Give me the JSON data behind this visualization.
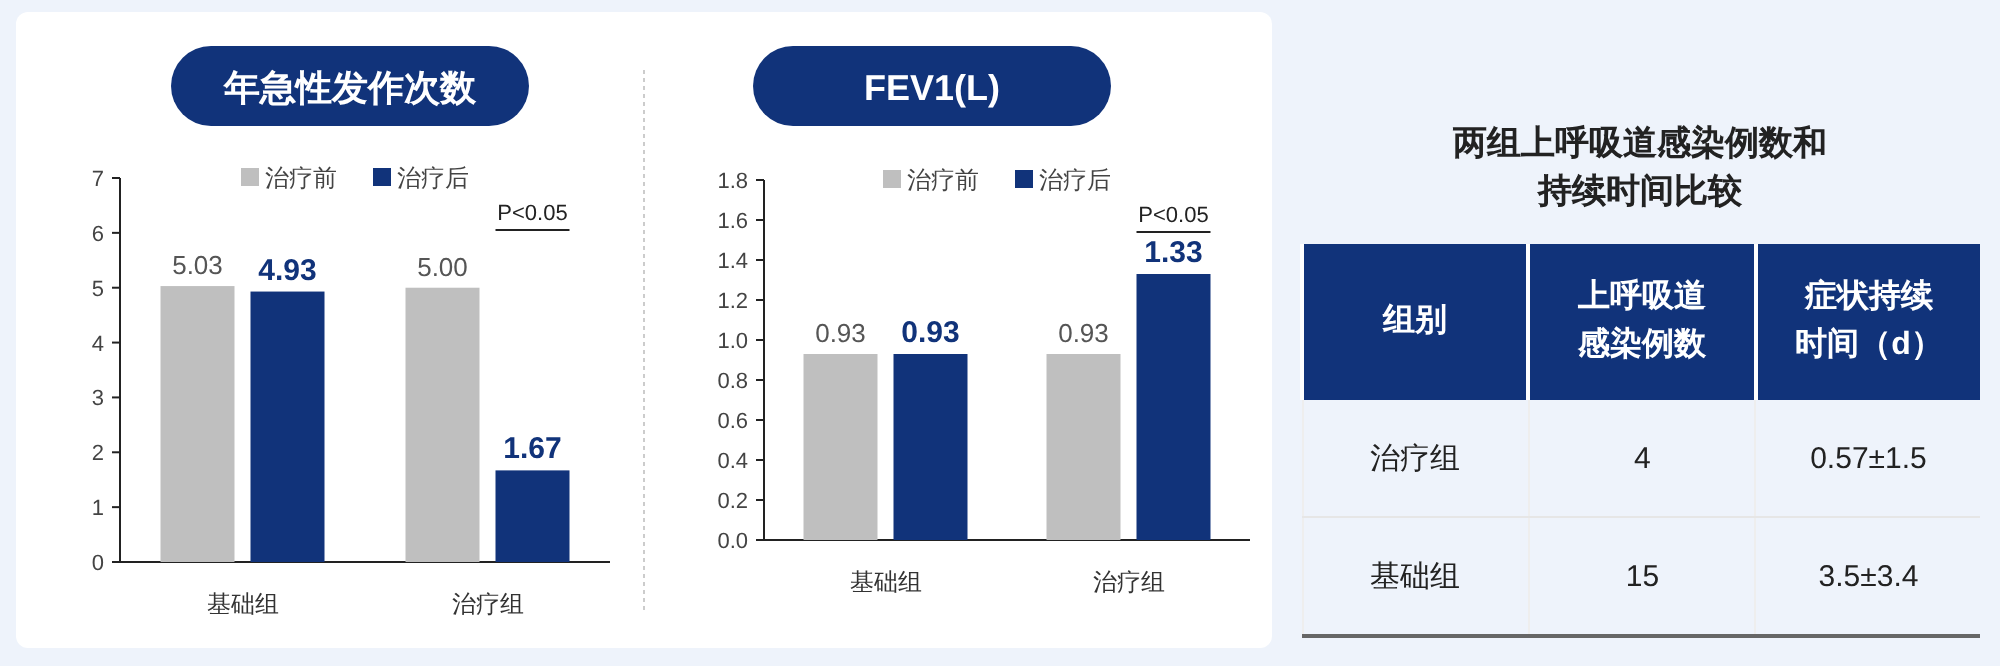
{
  "chart_data": [
    {
      "type": "bar",
      "title": "年急性发作次数",
      "categories": [
        "基础组",
        "治疗组"
      ],
      "series": [
        {
          "name": "治疗前",
          "color": "#bfbfbf",
          "values": [
            5.03,
            5.0
          ],
          "value_labels": [
            "5.03",
            "5.00"
          ]
        },
        {
          "name": "治疗后",
          "color": "#11337a",
          "values": [
            4.93,
            1.67
          ],
          "value_labels": [
            "4.93",
            "1.67"
          ]
        }
      ],
      "ylim": [
        0,
        7
      ],
      "yticks": [
        0,
        1,
        2,
        3,
        4,
        5,
        6,
        7
      ],
      "legend": "top",
      "annotations": [
        "P<0.05"
      ]
    },
    {
      "type": "bar",
      "title": "FEV1(L)",
      "categories": [
        "基础组",
        "治疗组"
      ],
      "series": [
        {
          "name": "治疗前",
          "color": "#bfbfbf",
          "values": [
            0.93,
            0.93
          ],
          "value_labels": [
            "0.93",
            "0.93"
          ]
        },
        {
          "name": "治疗后",
          "color": "#11337a",
          "values": [
            0.93,
            1.33
          ],
          "value_labels": [
            "0.93",
            "1.33"
          ]
        }
      ],
      "ylim": [
        0,
        1.8
      ],
      "yticks": [
        {
          "value": 0,
          "label": "0.0"
        },
        0.2,
        0.4,
        0.6,
        0.8,
        {
          "value": 1,
          "label": "1.0"
        },
        1.2,
        1.4,
        1.6,
        1.8
      ],
      "legend": "top",
      "annotations": [
        "P<0.05"
      ]
    },
    {
      "type": "other",
      "title": "两组上呼吸道感染例数和持续时间比较",
      "categories": [
        "组别",
        "上呼吸道感染例数",
        "症状持续时间（d）"
      ],
      "cell_labels": [
        [
          "治疗组",
          "4",
          "0.57±1.5"
        ],
        [
          "基础组",
          "15",
          "3.5±3.4"
        ]
      ]
    }
  ]
}
